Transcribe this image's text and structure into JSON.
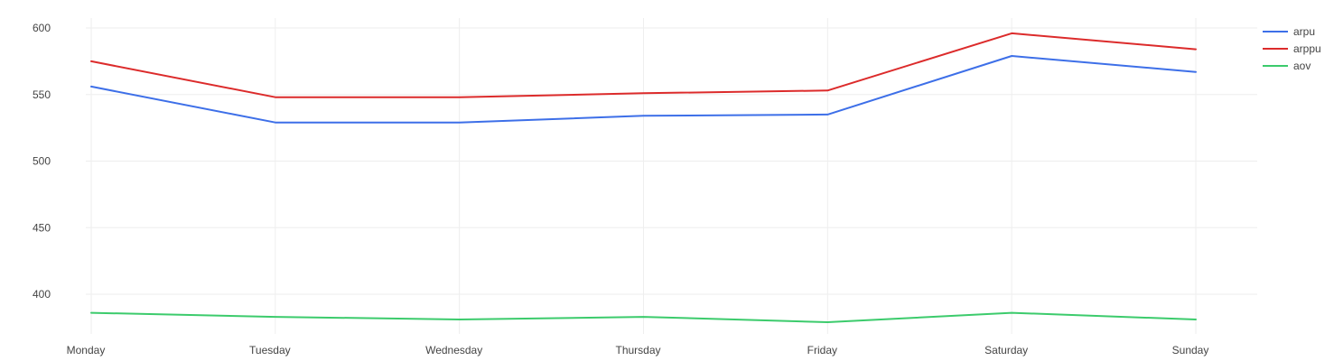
{
  "chart_data": {
    "type": "line",
    "title": "",
    "xlabel": "",
    "ylabel": "",
    "categories": [
      "Monday",
      "Tuesday",
      "Wednesday",
      "Thursday",
      "Friday",
      "Saturday",
      "Sunday"
    ],
    "yticks": [
      400,
      450,
      500,
      550,
      600
    ],
    "ylim": [
      367,
      608
    ],
    "grid": true,
    "legend_position": "top-right",
    "series": [
      {
        "name": "arpu",
        "color": "#3d6fe8",
        "values": [
          556,
          529,
          529,
          534,
          535,
          579,
          567
        ]
      },
      {
        "name": "arppu",
        "color": "#dc2b2b",
        "values": [
          575,
          548,
          548,
          551,
          553,
          596,
          584
        ]
      },
      {
        "name": "aov",
        "color": "#3ccb6c",
        "values": [
          386,
          383,
          381,
          383,
          379,
          386,
          381
        ]
      }
    ]
  }
}
